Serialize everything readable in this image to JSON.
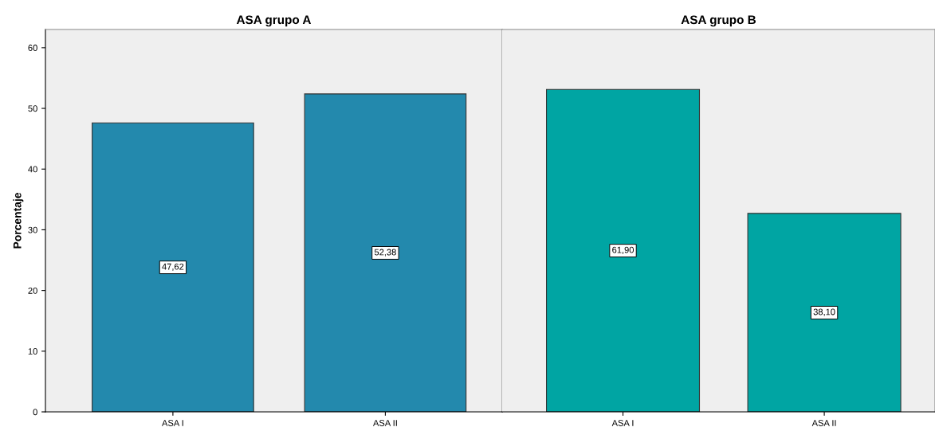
{
  "chart_data": [
    {
      "type": "bar",
      "title": "ASA grupo A",
      "ylabel": "Porcentaje",
      "categories": [
        "ASA I",
        "ASA II"
      ],
      "values": [
        47.62,
        52.38
      ],
      "value_labels": [
        "47,62",
        "52,38"
      ],
      "color": "#2389ad",
      "ylim": [
        0,
        63
      ],
      "yticks": [
        0,
        10,
        20,
        30,
        40,
        50,
        60
      ]
    },
    {
      "type": "bar",
      "title": "ASA grupo B",
      "categories": [
        "ASA I",
        "ASA II"
      ],
      "values": [
        61.9,
        38.1
      ],
      "value_labels": [
        "61,90",
        "38,10"
      ],
      "color": "#00a5a3",
      "ylim": [
        0,
        73.4
      ],
      "tick_labels": "x"
    }
  ]
}
